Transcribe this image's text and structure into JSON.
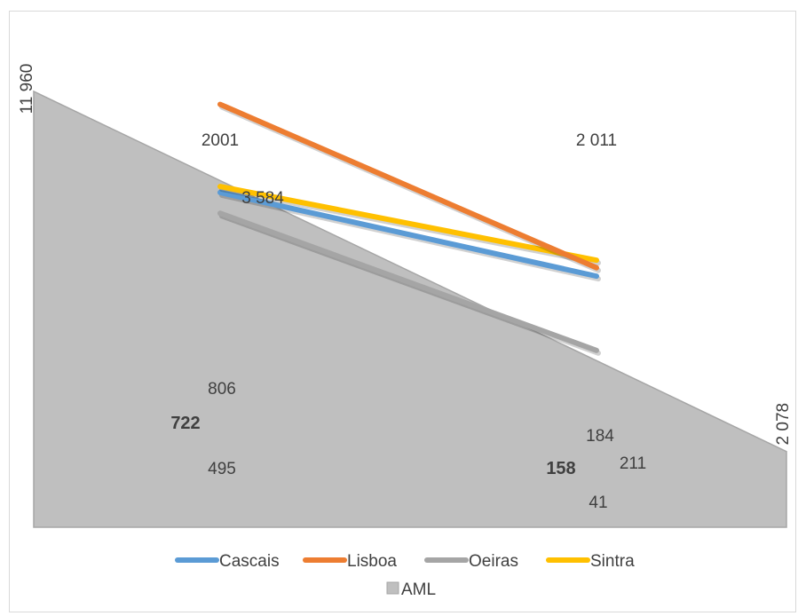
{
  "chart_data": {
    "type": "line",
    "title": "",
    "xlabel": "",
    "ylabel": "",
    "background_area": {
      "name": "AML",
      "type": "area",
      "start_value": 11960,
      "end_value": 2078,
      "start_label": "11 960",
      "end_label": "2 078",
      "color": "#bfbfbf"
    },
    "categories": [
      "2001",
      "2 011"
    ],
    "ylim": [
      0,
      11960
    ],
    "series": [
      {
        "name": "Cascais",
        "values": [
          722,
          158
        ],
        "labels": [
          "722",
          "158"
        ],
        "bold": true,
        "color": "#5b9bd5"
      },
      {
        "name": "Lisboa",
        "values": [
          3584,
          184
        ],
        "labels": [
          "3 584",
          "184"
        ],
        "bold": false,
        "color": "#ed7d31"
      },
      {
        "name": "Oeiras",
        "values": [
          495,
          41
        ],
        "labels": [
          "495",
          "41"
        ],
        "bold": false,
        "color": "#a5a5a5"
      },
      {
        "name": "Sintra",
        "values": [
          806,
          211
        ],
        "labels": [
          "806",
          "211"
        ],
        "bold": false,
        "color": "#ffc000"
      }
    ],
    "legend": {
      "position": "bottom",
      "entries": [
        "Cascais",
        "Lisboa",
        "Oeiras",
        "Sintra",
        "AML"
      ]
    }
  }
}
